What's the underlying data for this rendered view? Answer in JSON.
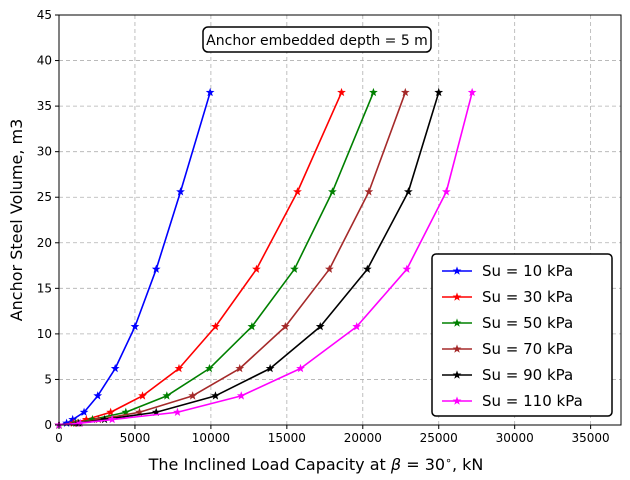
{
  "chart_data": {
    "type": "line",
    "title": "",
    "xlabel_prefix": "The Inclined Load Capacity at ",
    "xlabel_beta": "β",
    "xlabel_suffix": " = 30",
    "xlabel_degree": "∘",
    "xlabel_unit": ", kN",
    "ylabel": "Anchor Steel Volume, m3",
    "annotation": "Anchor embedded depth = 5 m",
    "xlim": [
      0,
      37000
    ],
    "ylim": [
      0,
      45
    ],
    "xticks": [
      0,
      5000,
      10000,
      15000,
      20000,
      25000,
      30000,
      35000
    ],
    "xtick_labels": [
      "0",
      "5000",
      "10000",
      "15000",
      "20000",
      "25000",
      "30000",
      "35000"
    ],
    "yticks": [
      0,
      5,
      10,
      15,
      20,
      25,
      30,
      35,
      40,
      45
    ],
    "ytick_labels": [
      "0",
      "5",
      "10",
      "15",
      "20",
      "25",
      "30",
      "35",
      "40",
      "45"
    ],
    "grid": true,
    "legend_position": "lower-right",
    "marker": "star",
    "y": [
      0.0,
      0.2,
      0.6,
      1.4,
      3.2,
      6.2,
      10.8,
      17.1,
      25.6,
      36.5
    ],
    "series": [
      {
        "name": "Su = 10 kPa",
        "color": "#0000ff",
        "x": [
          0,
          500,
          900,
          1650,
          2550,
          3700,
          5000,
          6400,
          8000,
          9950
        ]
      },
      {
        "name": "Su = 30 kPa",
        "color": "#ff0000",
        "x": [
          0,
          950,
          1800,
          3400,
          5500,
          7900,
          10300,
          13000,
          15700,
          18600
        ]
      },
      {
        "name": "Su = 50 kPa",
        "color": "#008000",
        "x": [
          0,
          1100,
          2200,
          4400,
          7100,
          9900,
          12700,
          15500,
          18000,
          20700
        ]
      },
      {
        "name": "Su = 70 kPa",
        "color": "#a52a2a",
        "x": [
          0,
          1200,
          2600,
          5300,
          8800,
          11900,
          14900,
          17800,
          20400,
          22800
        ]
      },
      {
        "name": "Su = 90 kPa",
        "color": "#000000",
        "x": [
          0,
          1300,
          3000,
          6400,
          10300,
          13900,
          17200,
          20300,
          23000,
          25000
        ]
      },
      {
        "name": "Su = 110 kPa",
        "color": "#ff00ff",
        "x": [
          0,
          1400,
          3500,
          7800,
          12000,
          15900,
          19600,
          22900,
          25500,
          27200
        ]
      }
    ]
  }
}
